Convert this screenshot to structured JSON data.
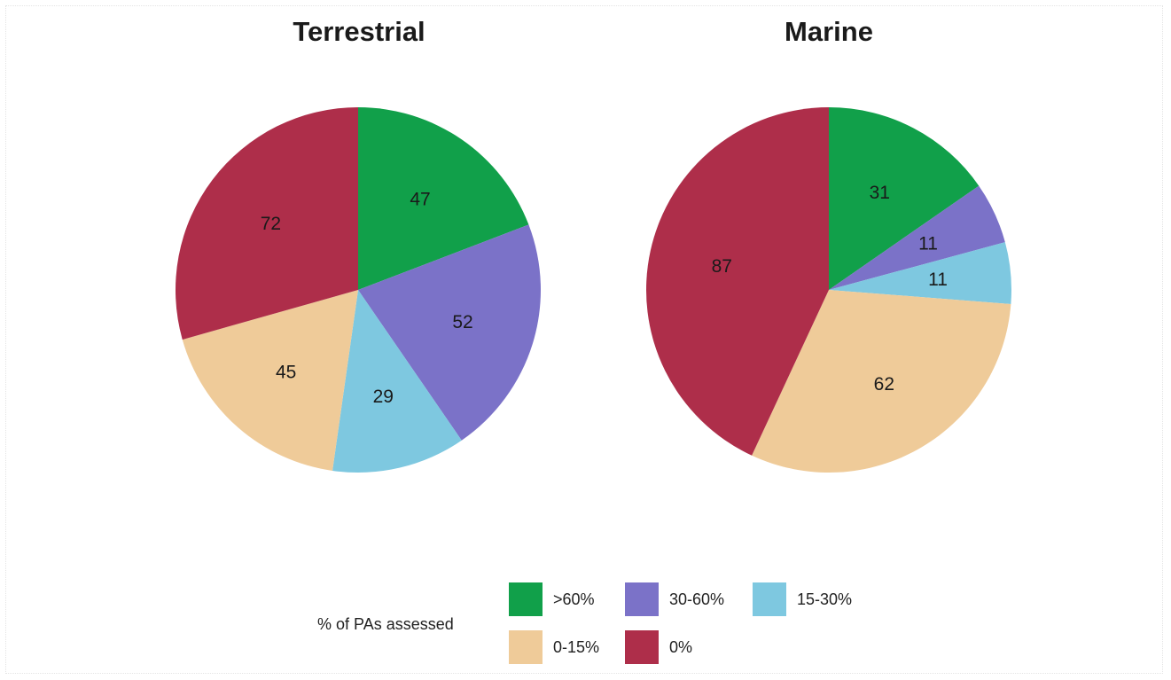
{
  "chart_data": [
    {
      "type": "pie",
      "title": "Terrestrial",
      "categories": [
        ">60%",
        "30-60%",
        "15-30%",
        "0-15%",
        "0%"
      ],
      "values": [
        47,
        52,
        29,
        45,
        72
      ],
      "colors": [
        "#11a04a",
        "#7b72c8",
        "#7ec8e0",
        "#efcb99",
        "#ae2e4a"
      ],
      "start_angle": "12 o'clock",
      "direction": "clockwise"
    },
    {
      "type": "pie",
      "title": "Marine",
      "categories": [
        ">60%",
        "30-60%",
        "15-30%",
        "0-15%",
        "0%"
      ],
      "values": [
        31,
        11,
        11,
        62,
        87
      ],
      "colors": [
        "#11a04a",
        "#7b72c8",
        "#7ec8e0",
        "#efcb99",
        "#ae2e4a"
      ],
      "start_angle": "12 o'clock",
      "direction": "clockwise"
    }
  ],
  "legend": {
    "title": "% of PAs assessed",
    "placement": "bottom-center",
    "items": [
      {
        "label": ">60%",
        "color": "#11a04a"
      },
      {
        "label": "30-60%",
        "color": "#7b72c8"
      },
      {
        "label": "15-30%",
        "color": "#7ec8e0"
      },
      {
        "label": "0-15%",
        "color": "#efcb99"
      },
      {
        "label": "0%",
        "color": "#ae2e4a"
      }
    ]
  }
}
